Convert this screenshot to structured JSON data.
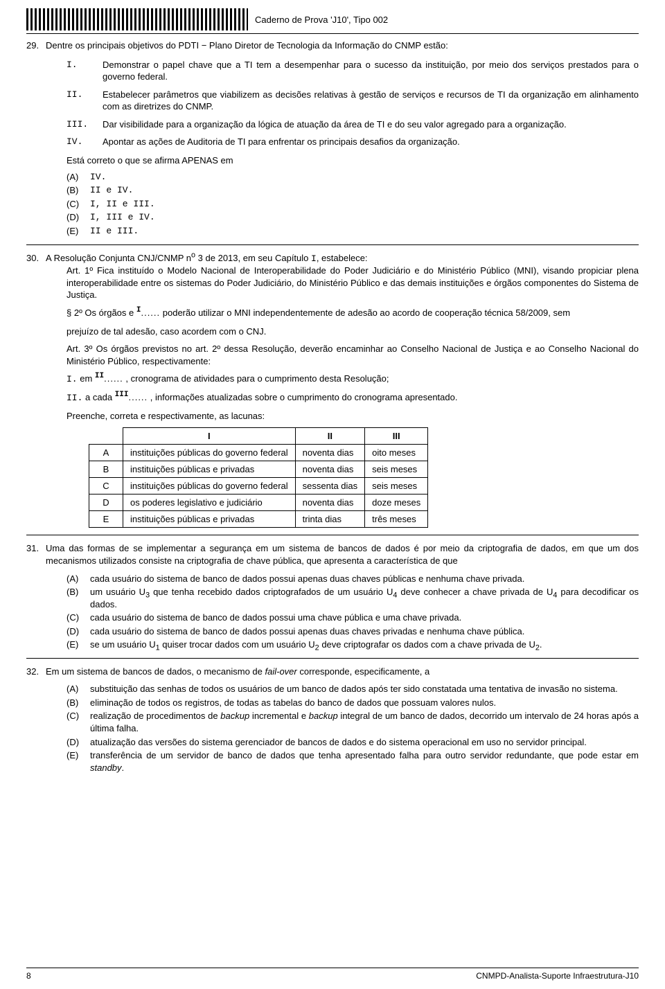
{
  "header": {
    "caderno": "Caderno de Prova 'J10', Tipo 002"
  },
  "q29": {
    "num": "29.",
    "text": "Dentre os principais objetivos do PDTI − Plano Diretor de Tecnologia da Informação do CNMP estão:",
    "roman": [
      "I.",
      "II.",
      "III.",
      "IV."
    ],
    "stmt1": "Demonstrar o papel chave que a TI tem a desempenhar para o sucesso da instituição, por meio dos serviços prestados para o governo federal.",
    "stmt2": "Estabelecer parâmetros que viabilizem as decisões relativas à gestão de serviços e recursos de TI da organização em alinhamento com as diretrizes do CNMP.",
    "stmt3": "Dar visibilidade para a organização da lógica de atuação da área de TI e do seu valor agregado para a organização.",
    "stmt4": "Apontar as ações de Auditoria de TI para enfrentar os principais desafios da organização.",
    "after": "Está correto o que se afirma APENAS em",
    "opts": {
      "A": "IV.",
      "B": "II e IV.",
      "C": "I, II e III.",
      "D": "I, III e IV.",
      "E": "II e III."
    }
  },
  "q30": {
    "num": "30.",
    "text_a": "A Resolução Conjunta CNJ/CNMP n",
    "text_b": " 3 de 2013, em seu Capítulo ",
    "text_c": ", estabelece:",
    "art1": "Art. 1º Fica instituído o Modelo Nacional de Interoperabilidade do Poder Judiciário e do Ministério Público (MNI), visando propiciar plena interoperabilidade entre os sistemas do Poder Judiciário, do Ministério Público e das demais instituições e órgãos componentes do Sistema de Justiça.",
    "p2_a": "§ 2º Os órgãos e ",
    "p2_b": " poderão utilizar o MNI independentemente de adesão ao acordo de cooperação técnica 58/2009, sem",
    "p2_c": "prejuízo de tal adesão, caso acordem com o CNJ.",
    "art3": "Art. 3º Os órgãos previstos no art. 2º dessa Resolução, deverão encaminhar ao Conselho Nacional de Justiça e ao Conselho Nacional do Ministério Público, respectivamente:",
    "line_i_r": "I.",
    "line_i_a": " em ",
    "line_i_b": " , cronograma de atividades para o cumprimento desta Resolução;",
    "line_ii_r": "II.",
    "line_ii_a": " a cada ",
    "line_ii_b": " , informações atualizadas sobre o cumprimento do cronograma apresentado.",
    "fill": "Preenche, correta e respectivamente, as lacunas:",
    "labels": {
      "I": "I",
      "II": "II",
      "III": "III"
    },
    "table": {
      "h1": "I",
      "h2": "II",
      "h3": "III",
      "rows": [
        {
          "k": "A",
          "c1": "instituições públicas do governo federal",
          "c2": "noventa dias",
          "c3": "oito meses"
        },
        {
          "k": "B",
          "c1": "instituições públicas e privadas",
          "c2": "noventa dias",
          "c3": "seis meses"
        },
        {
          "k": "C",
          "c1": "instituições públicas do governo federal",
          "c2": "sessenta dias",
          "c3": "seis meses"
        },
        {
          "k": "D",
          "c1": "os poderes legislativo e judiciário",
          "c2": "noventa dias",
          "c3": "doze meses"
        },
        {
          "k": "E",
          "c1": "instituições públicas e privadas",
          "c2": "trinta dias",
          "c3": "três meses"
        }
      ]
    }
  },
  "q31": {
    "num": "31.",
    "text": "Uma das formas de se implementar a segurança em um sistema de bancos de dados é por meio da criptografia de dados, em que um dos mecanismos utilizados consiste na criptografia de chave pública, que apresenta a característica de que",
    "opts": {
      "A": "cada usuário do sistema de banco de dados possui apenas duas chaves públicas e nenhuma chave privada.",
      "B_a": "um usuário U",
      "B_b": " que tenha recebido dados criptografados de um usuário U",
      "B_c": " deve conhecer a chave privada de U",
      "B_d": " para decodificar os dados.",
      "C": "cada usuário do sistema de banco de dados possui uma chave pública e uma chave privada.",
      "D": "cada usuário do sistema de banco de dados possui apenas duas chaves privadas e nenhuma chave pública.",
      "E_a": "se um usuário U",
      "E_b": " quiser trocar dados com um usuário U",
      "E_c": " deve criptografar os dados com a chave privada de U",
      "E_d": "."
    }
  },
  "q32": {
    "num": "32.",
    "text_a": "Em um sistema de bancos de dados, o mecanismo de ",
    "text_b": "fail-over",
    "text_c": " corresponde, especificamente, a",
    "opts": {
      "A": "substituição das senhas de todos os usuários de um banco de dados após ter sido constatada uma tentativa de invasão no sistema.",
      "B": "eliminação de todos os registros, de todas as tabelas do banco de dados que possuam valores nulos.",
      "C_a": "realização de procedimentos de ",
      "C_b": "backup",
      "C_c": " incremental e ",
      "C_d": "backup",
      "C_e": " integral de um banco de dados, decorrido um intervalo de 24 horas após a última falha.",
      "D": "atualização das versões do sistema gerenciador de bancos de dados e do sistema operacional em uso no servidor principal.",
      "E_a": "transferência de um servidor de banco de dados que tenha apresentado falha para outro servidor redundante, que pode estar em ",
      "E_b": "standby",
      "E_c": "."
    }
  },
  "footer": {
    "page": "8",
    "code": "CNMPD-Analista-Suporte Infraestrutura-J10"
  }
}
